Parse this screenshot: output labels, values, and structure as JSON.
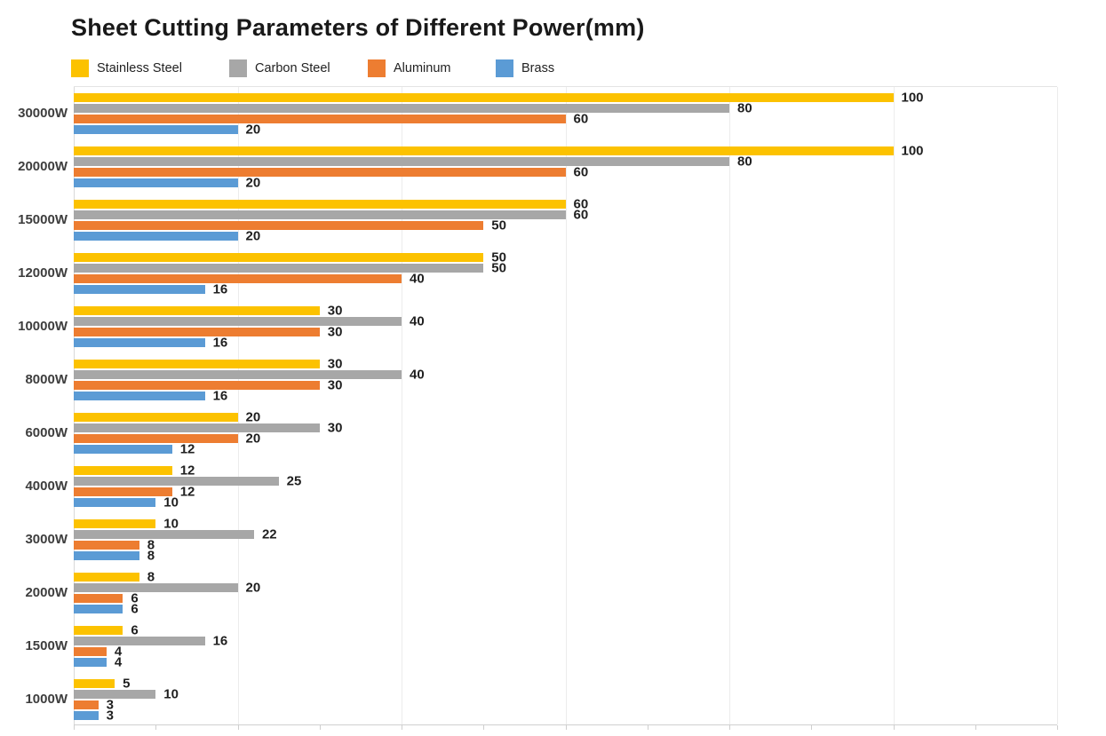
{
  "title": "Sheet Cutting Parameters of Different Power(mm)",
  "chart_data": {
    "type": "bar",
    "orientation": "horizontal",
    "title": "Sheet Cutting Parameters of Different Power(mm)",
    "categories": [
      "30000W",
      "20000W",
      "15000W",
      "12000W",
      "10000W",
      "8000W",
      "6000W",
      "4000W",
      "3000W",
      "2000W",
      "1500W",
      "1000W"
    ],
    "series": [
      {
        "name": "Stainless Steel",
        "color": "#FCC200",
        "values": [
          100,
          100,
          60,
          50,
          30,
          30,
          20,
          12,
          10,
          8,
          6,
          5
        ]
      },
      {
        "name": "Carbon Steel",
        "color": "#A7A7A7",
        "values": [
          80,
          80,
          60,
          50,
          40,
          40,
          30,
          25,
          22,
          20,
          16,
          10
        ]
      },
      {
        "name": "Aluminum",
        "color": "#ED7D31",
        "values": [
          60,
          60,
          50,
          40,
          30,
          30,
          20,
          12,
          8,
          6,
          4,
          3
        ]
      },
      {
        "name": "Brass",
        "color": "#5B9BD5",
        "values": [
          20,
          20,
          20,
          16,
          16,
          16,
          12,
          10,
          8,
          6,
          4,
          3
        ]
      }
    ],
    "xlim": [
      0,
      120
    ],
    "gridline_step": 20,
    "tick_step": 10,
    "grid": true,
    "legend_position": "top-left",
    "value_labels": true,
    "x_axis_tick_labels_visible": false
  },
  "colors": {
    "background": "#ffffff",
    "gridline": "#ececec",
    "axis_line": "#cfcfcf",
    "title_text": "#191919",
    "value_label_text": "#1f1f1f",
    "category_label_text": "#3d3d3d",
    "legend_text": "#222222"
  }
}
